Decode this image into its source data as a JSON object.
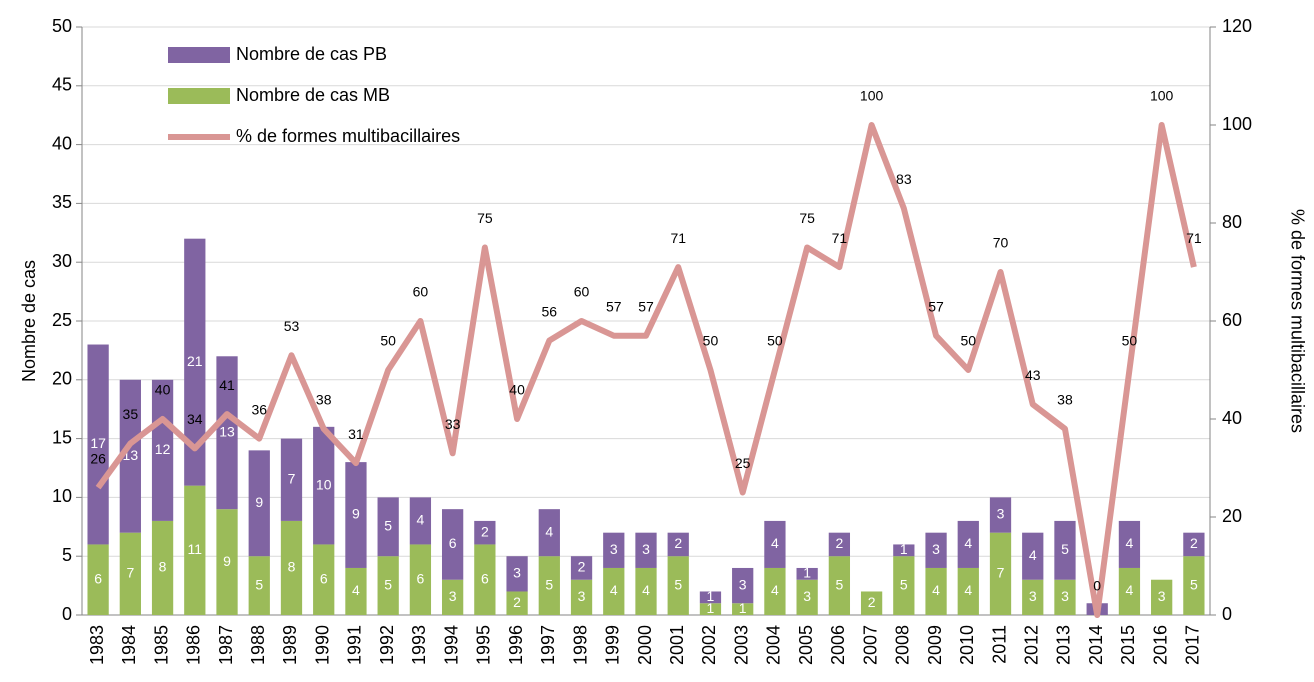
{
  "chart_data": {
    "type": "bar",
    "categories": [
      "1983",
      "1984",
      "1985",
      "1986",
      "1987",
      "1988",
      "1989",
      "1990",
      "1991",
      "1992",
      "1993",
      "1994",
      "1995",
      "1996",
      "1997",
      "1998",
      "1999",
      "2000",
      "2001",
      "2002",
      "2003",
      "2004",
      "2005",
      "2006",
      "2007",
      "2008",
      "2009",
      "2010",
      "2011",
      "2012",
      "2013",
      "2014",
      "2015",
      "2016",
      "2017"
    ],
    "series": [
      {
        "name": "Nombre de cas PB",
        "color": "#8064a2",
        "type": "bar",
        "values": [
          17,
          13,
          12,
          21,
          13,
          9,
          7,
          10,
          9,
          5,
          4,
          6,
          2,
          3,
          4,
          2,
          3,
          3,
          2,
          1,
          3,
          4,
          1,
          2,
          0,
          1,
          3,
          4,
          3,
          4,
          5,
          1,
          4,
          0,
          2
        ]
      },
      {
        "name": "Nombre de cas MB",
        "color": "#9bbb59",
        "type": "bar",
        "values": [
          6,
          7,
          8,
          11,
          9,
          5,
          8,
          6,
          4,
          5,
          6,
          3,
          6,
          2,
          5,
          3,
          4,
          4,
          5,
          1,
          1,
          4,
          3,
          5,
          2,
          5,
          4,
          4,
          7,
          3,
          3,
          0,
          4,
          3,
          5
        ]
      },
      {
        "name": "% de formes multibacillaires",
        "color": "#d99694",
        "type": "line",
        "axis": "y2",
        "values": [
          26,
          35,
          40,
          34,
          41,
          36,
          53,
          38,
          31,
          50,
          60,
          33,
          75,
          40,
          56,
          60,
          57,
          57,
          71,
          50,
          25,
          50,
          75,
          71,
          100,
          83,
          57,
          50,
          70,
          43,
          38,
          0,
          50,
          100,
          71
        ]
      }
    ],
    "ylabel": "Nombre de cas",
    "y2label": "% de formes multibacillaires",
    "ylim": [
      0,
      50
    ],
    "yticks": [
      0,
      5,
      10,
      15,
      20,
      25,
      30,
      35,
      40,
      45,
      50
    ],
    "y2lim": [
      0,
      120
    ],
    "y2ticks": [
      0,
      20,
      40,
      60,
      80,
      100,
      120
    ],
    "grid": true,
    "legend": "upper left"
  }
}
